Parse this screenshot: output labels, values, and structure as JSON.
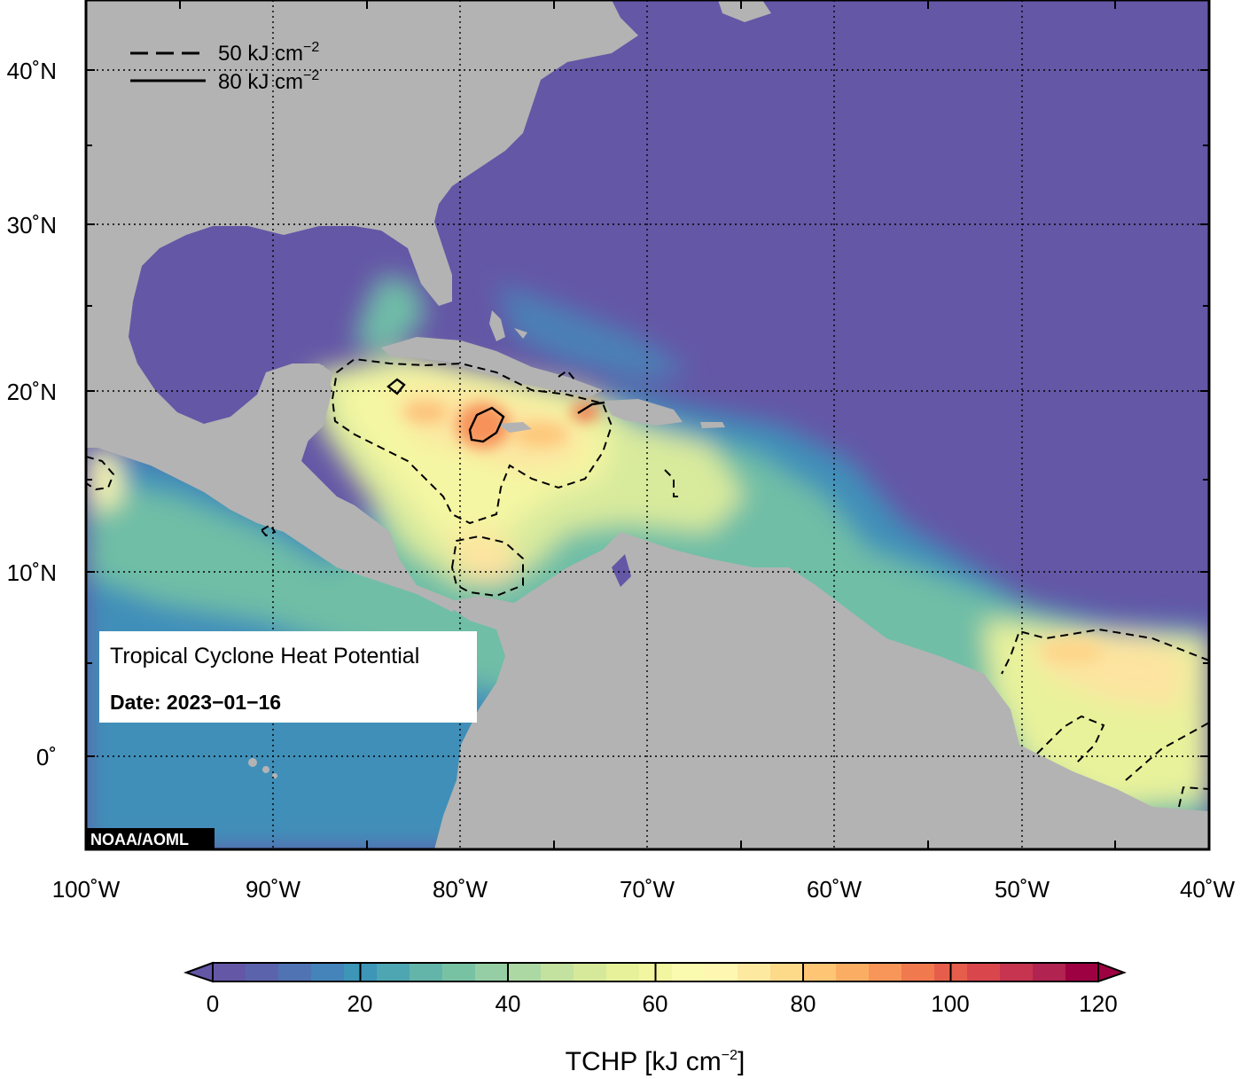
{
  "map": {
    "lat_labels": [
      "40˚N",
      "30˚N",
      "20˚N",
      "10˚N",
      "0˚"
    ],
    "lon_labels": [
      "100˚W",
      "90˚W",
      "80˚W",
      "70˚W",
      "60˚W",
      "50˚W",
      "40˚W"
    ],
    "contour_legend": [
      {
        "label": "50 kJ cm",
        "exp": "−2",
        "style": "dashed"
      },
      {
        "label": "80 kJ cm",
        "exp": "−2",
        "style": "solid"
      }
    ],
    "info_title": "Tropical Cyclone Heat Potential",
    "info_date": "Date: 2023−01−16",
    "credit": "NOAA/AOML",
    "colors": {
      "ocean_low": "#6457a6",
      "land": "#b3b3b3",
      "frame": "#000000"
    }
  },
  "colorbar": {
    "tick_labels": [
      "0",
      "20",
      "40",
      "60",
      "80",
      "100",
      "120"
    ],
    "title_main": "TCHP [kJ cm",
    "title_exp": "−2",
    "title_end": "]",
    "colors": [
      "#6457a6",
      "#5c63ad",
      "#4f73b3",
      "#4484bb",
      "#3d95b8",
      "#4ea6b2",
      "#63b5a9",
      "#78c2a4",
      "#95cea4",
      "#acd8a3",
      "#c3e19f",
      "#d6e99b",
      "#e6f19a",
      "#f2f6a1",
      "#fbfbb0",
      "#fef7b2",
      "#fee9a1",
      "#fdd98a",
      "#fdc574",
      "#fbae63",
      "#f79658",
      "#f1794e",
      "#e65e4b",
      "#d9464c",
      "#c7344f",
      "#b12350",
      "#9e0142"
    ]
  }
}
